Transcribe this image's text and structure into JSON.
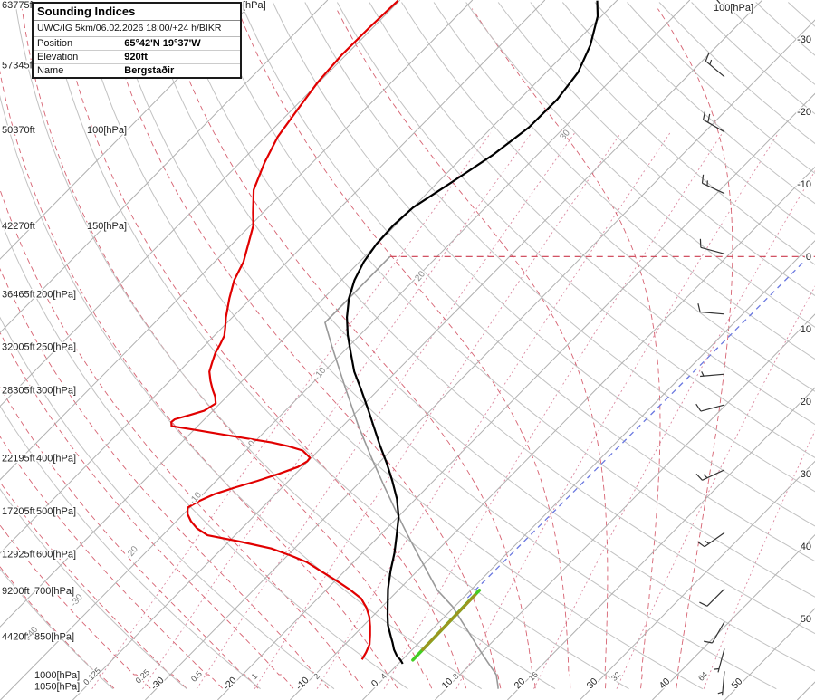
{
  "info_box": {
    "title": "Sounding Indices",
    "model_line": "UWC/IG 5km/06.02.2026 18:00/+24 h/BIKR",
    "rows": [
      {
        "label": "Position",
        "value": "65°42'N 19°37'W"
      },
      {
        "label": "Elevation",
        "value": "920ft"
      },
      {
        "label": "Name",
        "value": "Bergstaðir"
      }
    ]
  },
  "chart_data": {
    "type": "skewt-log-p-sounding",
    "station": "BIKR Bergstaðir",
    "valid": "06.02.2026 18:00 +24h",
    "axes": {
      "left_labels": [
        {
          "ft": "63775ft",
          "hpa": "[hPa]",
          "p": 59,
          "hx": 268
        },
        {
          "ft": "57345ft",
          "hpa": "",
          "p": 76,
          "hx": 38
        },
        {
          "ft": "50370ft",
          "hpa": "100[hPa]",
          "p": 100,
          "hx": 96
        },
        {
          "ft": "42270ft",
          "hpa": "150[hPa]",
          "p": 150,
          "hx": 96
        },
        {
          "ft": "36465ft",
          "hpa": "200[hPa]",
          "p": 200,
          "hx": 40
        },
        {
          "ft": "32005ft",
          "hpa": "250[hPa]",
          "p": 250,
          "hx": 40
        },
        {
          "ft": "28305ft",
          "hpa": "300[hPa]",
          "p": 300,
          "hx": 40
        },
        {
          "ft": "22195ft",
          "hpa": "400[hPa]",
          "p": 400,
          "hx": 40
        },
        {
          "ft": "17205ft",
          "hpa": "500[hPa]",
          "p": 500,
          "hx": 40
        },
        {
          "ft": "12925ft",
          "hpa": "600[hPa]",
          "p": 600,
          "hx": 40
        },
        {
          "ft": "9200ft",
          "hpa": "700[hPa]",
          "p": 700,
          "hx": 38
        },
        {
          "ft": "4420ft",
          "hpa": "850[hPa]",
          "p": 850,
          "hx": 38
        },
        {
          "ft": "",
          "hpa": "1000[hPa]",
          "p": 1000,
          "hx": 38
        },
        {
          "ft": "",
          "hpa": "1050[hPa]",
          "p": 1050,
          "hx": 38
        }
      ],
      "right_temp_labels": [
        -30,
        -20,
        -10,
        0,
        10,
        20,
        30,
        40,
        50
      ],
      "bottom_temp_labels": [
        -30,
        -20,
        -10,
        0,
        10,
        20,
        30,
        40,
        50
      ],
      "mixing_ratio_labels": [
        0.125,
        0.25,
        0.5,
        1,
        2,
        4,
        8,
        16,
        32,
        64
      ],
      "dry_adiabat_labels": [
        {
          "value": -40,
          "p": 844,
          "t": -54.3
        },
        {
          "value": -30,
          "p": 736,
          "t": -52.5
        },
        {
          "value": -20,
          "p": 601,
          "t": -51.4
        },
        {
          "value": -10,
          "p": 478,
          "t": -50.0
        },
        {
          "value": 0,
          "p": 380,
          "t": -49.6
        },
        {
          "value": 10,
          "p": 281,
          "t": -49.8
        },
        {
          "value": 20,
          "p": 187,
          "t": -49.2
        },
        {
          "value": 30,
          "p": 103,
          "t": -48.4
        }
      ],
      "top_right_label": "100[hPa]"
    },
    "grid": {
      "isotherms_c": {
        "min": -110,
        "max": 70,
        "step": 10
      },
      "dry_adiabats_c": {
        "min": -40,
        "max": 270,
        "step": 10
      },
      "moist_adiabats_c": {
        "min": -40,
        "max": 40,
        "step": 5
      },
      "pressure_range_hpa": [
        58,
        1060
      ]
    },
    "temperature_profile": [
      [
        955,
        0.6
      ],
      [
        940,
        -0.2
      ],
      [
        925,
        -1.2
      ],
      [
        900,
        -2.5
      ],
      [
        875,
        -3.6
      ],
      [
        850,
        -4.8
      ],
      [
        811,
        -6.7
      ],
      [
        780,
        -8.0
      ],
      [
        751,
        -9.2
      ],
      [
        723,
        -10.4
      ],
      [
        696,
        -11.6
      ],
      [
        645,
        -13.7
      ],
      [
        598,
        -15.6
      ],
      [
        555,
        -17.7
      ],
      [
        514,
        -19.9
      ],
      [
        476,
        -22.6
      ],
      [
        441,
        -25.7
      ],
      [
        409,
        -28.9
      ],
      [
        379,
        -32.3
      ],
      [
        351,
        -35.6
      ],
      [
        325,
        -38.9
      ],
      [
        300,
        -42.4
      ],
      [
        278,
        -45.8
      ],
      [
        257,
        -48.8
      ],
      [
        238,
        -51.7
      ],
      [
        221,
        -54.2
      ],
      [
        204,
        -56.5
      ],
      [
        189,
        -58.2
      ],
      [
        175,
        -59.4
      ],
      [
        162,
        -60.1
      ],
      [
        150,
        -60.3
      ],
      [
        139,
        -60.0
      ],
      [
        125,
        -58.1
      ],
      [
        111,
        -56.1
      ],
      [
        99,
        -54.9
      ],
      [
        88,
        -54.8
      ],
      [
        78.5,
        -55.6
      ],
      [
        70,
        -57.6
      ],
      [
        62,
        -60.5
      ],
      [
        58,
        -62.7
      ]
    ],
    "dewpoint_profile": [
      [
        938,
        -5.6
      ],
      [
        910,
        -6.0
      ],
      [
        880,
        -6.6
      ],
      [
        846,
        -7.8
      ],
      [
        815,
        -9.0
      ],
      [
        783,
        -10.4
      ],
      [
        754,
        -12.0
      ],
      [
        725,
        -14.0
      ],
      [
        698,
        -16.8
      ],
      [
        672,
        -19.9
      ],
      [
        647,
        -23.1
      ],
      [
        622,
        -26.4
      ],
      [
        605,
        -29.5
      ],
      [
        587,
        -33.2
      ],
      [
        570,
        -38.5
      ],
      [
        555,
        -43.8
      ],
      [
        539,
        -46.2
      ],
      [
        523,
        -48.0
      ],
      [
        508,
        -49.4
      ],
      [
        494,
        -50.3
      ],
      [
        480,
        -49.6
      ],
      [
        466,
        -48.4
      ],
      [
        453,
        -46.4
      ],
      [
        441,
        -44.3
      ],
      [
        428,
        -42.3
      ],
      [
        416,
        -40.6
      ],
      [
        406,
        -40.1
      ],
      [
        400,
        -40.2
      ],
      [
        388,
        -42.2
      ],
      [
        381,
        -44.8
      ],
      [
        375,
        -47.6
      ],
      [
        368,
        -52.0
      ],
      [
        361,
        -56.4
      ],
      [
        355,
        -60.2
      ],
      [
        350,
        -63.6
      ],
      [
        344,
        -64.2
      ],
      [
        340,
        -64.1
      ],
      [
        334,
        -62.6
      ],
      [
        328,
        -61.2
      ],
      [
        318,
        -60.6
      ],
      [
        309,
        -61.6
      ],
      [
        300,
        -62.9
      ],
      [
        289,
        -64.4
      ],
      [
        278,
        -65.8
      ],
      [
        267,
        -66.7
      ],
      [
        257,
        -67.5
      ],
      [
        248,
        -68.0
      ],
      [
        239,
        -68.6
      ],
      [
        230,
        -69.7
      ],
      [
        221,
        -70.9
      ],
      [
        204,
        -73.0
      ],
      [
        189,
        -74.8
      ],
      [
        175,
        -76.0
      ],
      [
        162,
        -77.8
      ],
      [
        150,
        -79.6
      ],
      [
        142,
        -81.4
      ],
      [
        129,
        -84.4
      ],
      [
        115,
        -86.6
      ],
      [
        103,
        -88.3
      ],
      [
        91.5,
        -89.3
      ],
      [
        81.7,
        -90.2
      ],
      [
        72.9,
        -90.6
      ],
      [
        65,
        -90.5
      ],
      [
        58,
        -90.2
      ]
    ],
    "standard_atmosphere": [
      [
        1062,
        17.2
      ],
      [
        1050,
        16.8
      ],
      [
        1000,
        15.0
      ],
      [
        950,
        12.2
      ],
      [
        900,
        9.3
      ],
      [
        850,
        6.3
      ],
      [
        800,
        3.1
      ],
      [
        750,
        -0.3
      ],
      [
        700,
        -4.6
      ],
      [
        650,
        -8.3
      ],
      [
        600,
        -12.3
      ],
      [
        550,
        -16.6
      ],
      [
        500,
        -21.2
      ],
      [
        450,
        -26.2
      ],
      [
        400,
        -31.7
      ],
      [
        350,
        -37.8
      ],
      [
        300,
        -44.5
      ],
      [
        250,
        -52.3
      ],
      [
        226,
        -56.5
      ],
      [
        200,
        -56.5
      ],
      [
        171,
        -56.5
      ]
    ],
    "parcel_segment_green": {
      "p": [
        940,
        700
      ],
      "t": [
        1.5,
        1.2
      ]
    },
    "parcel_segment_olive": {
      "p": [
        900,
        714
      ],
      "t": [
        1.45,
        1.25
      ]
    },
    "blue_reference_line": {
      "p": [
        723,
        174
      ],
      "t": [
        0.6,
        1.3
      ]
    },
    "tropopause_hpa": 171,
    "tropopause_start_t": -56.5,
    "wind_barbs": [
      {
        "p": 60,
        "dir": 320,
        "kt": 20
      },
      {
        "p": 80,
        "dir": 310,
        "kt": 15
      },
      {
        "p": 101,
        "dir": 300,
        "kt": 20
      },
      {
        "p": 131,
        "dir": 295,
        "kt": 15
      },
      {
        "p": 169,
        "dir": 285,
        "kt": 10
      },
      {
        "p": 218,
        "dir": 275,
        "kt": 10
      },
      {
        "p": 281,
        "dir": 265,
        "kt": 5
      },
      {
        "p": 320,
        "dir": 255,
        "kt": 10
      },
      {
        "p": 421,
        "dir": 245,
        "kt": 15
      },
      {
        "p": 549,
        "dir": 235,
        "kt": 15
      },
      {
        "p": 696,
        "dir": 225,
        "kt": 10
      },
      {
        "p": 800,
        "dir": 210,
        "kt": 10
      },
      {
        "p": 896,
        "dir": 195,
        "kt": 5
      },
      {
        "p": 986,
        "dir": 185,
        "kt": 5
      }
    ],
    "colors": {
      "temperature": "#000000",
      "dewpoint": "#e10000",
      "standard_atmosphere": "#999999",
      "isotherm": "#b0b0b0",
      "dry_adiabat": "#c2c2c2",
      "moist_adiabat": "#cc3b4e",
      "mixing_ratio": "#d4738f",
      "parcel_green": "#44cc22",
      "parcel_olive": "#9e941f",
      "blue_line": "#6a78e0",
      "tropopause": "#cc3b4e",
      "barb": "#333333",
      "label": "#222222",
      "adiabat_label": "#8a8a8a"
    }
  }
}
